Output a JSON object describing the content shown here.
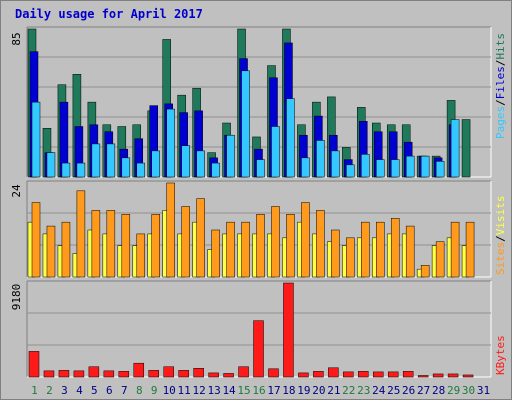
{
  "title": "Daily usage for April 2017",
  "colors": {
    "background": "#c0c0c0",
    "title": "#0000cc",
    "hits": "#1e7a5a",
    "files": "#0000d0",
    "pages": "#33c8ff",
    "visits": "#ff9a1c",
    "sites": "#ffff44",
    "kbytes": "#ff1a1a",
    "weekend_day": "#1e7a3c",
    "weekday": "#000080"
  },
  "chart_data": [
    {
      "type": "bar",
      "panel": "hits-files-pages",
      "ymax_label": "85",
      "legend": [
        "Pages",
        "Files",
        "Hits"
      ],
      "categories": [
        "1",
        "2",
        "3",
        "4",
        "5",
        "6",
        "7",
        "8",
        "9",
        "10",
        "11",
        "12",
        "13",
        "14",
        "15",
        "16",
        "17",
        "18",
        "19",
        "20",
        "21",
        "22",
        "23",
        "24",
        "25",
        "26",
        "27",
        "28",
        "29",
        "30",
        "31"
      ],
      "series": [
        {
          "name": "Hits",
          "values": [
            85,
            28,
            53,
            59,
            43,
            30,
            29,
            30,
            38,
            79,
            47,
            51,
            14,
            31,
            85,
            23,
            64,
            85,
            30,
            43,
            46,
            17,
            40,
            31,
            30,
            30,
            12,
            12,
            44,
            33,
            0
          ]
        },
        {
          "name": "Files",
          "values": [
            72,
            14,
            43,
            29,
            30,
            26,
            16,
            22,
            41,
            42,
            37,
            38,
            11,
            24,
            68,
            16,
            57,
            77,
            24,
            35,
            24,
            10,
            32,
            26,
            26,
            20,
            12,
            11,
            30,
            0,
            0
          ]
        },
        {
          "name": "Pages",
          "values": [
            43,
            14,
            8,
            8,
            19,
            19,
            11,
            8,
            15,
            39,
            18,
            15,
            8,
            24,
            61,
            10,
            29,
            45,
            11,
            21,
            15,
            7,
            13,
            10,
            10,
            12,
            12,
            9,
            33,
            0,
            0
          ]
        }
      ],
      "ylim": [
        0,
        85
      ]
    },
    {
      "type": "bar",
      "panel": "visits-sites",
      "ymax_label": "24",
      "legend": [
        "Sites",
        "Visits"
      ],
      "categories": [
        "1",
        "2",
        "3",
        "4",
        "5",
        "6",
        "7",
        "8",
        "9",
        "10",
        "11",
        "12",
        "13",
        "14",
        "15",
        "16",
        "17",
        "18",
        "19",
        "20",
        "21",
        "22",
        "23",
        "24",
        "25",
        "26",
        "27",
        "28",
        "29",
        "30",
        "31"
      ],
      "series": [
        {
          "name": "Visits",
          "values": [
            19,
            13,
            14,
            22,
            17,
            17,
            16,
            11,
            16,
            24,
            18,
            20,
            12,
            14,
            14,
            16,
            18,
            16,
            19,
            17,
            12,
            10,
            14,
            14,
            15,
            13,
            3,
            9,
            14,
            14,
            0
          ]
        },
        {
          "name": "Sites",
          "values": [
            14,
            11,
            8,
            6,
            12,
            11,
            8,
            8,
            11,
            17,
            11,
            14,
            7,
            11,
            11,
            11,
            11,
            10,
            14,
            11,
            9,
            8,
            10,
            10,
            11,
            11,
            2,
            8,
            10,
            8,
            0
          ]
        }
      ],
      "ylim": [
        0,
        24
      ]
    },
    {
      "type": "bar",
      "panel": "kbytes",
      "ymax_label": "9180",
      "legend": [
        "KBytes"
      ],
      "categories": [
        "1",
        "2",
        "3",
        "4",
        "5",
        "6",
        "7",
        "8",
        "9",
        "10",
        "11",
        "12",
        "13",
        "14",
        "15",
        "16",
        "17",
        "18",
        "19",
        "20",
        "21",
        "22",
        "23",
        "24",
        "25",
        "26",
        "27",
        "28",
        "29",
        "30",
        "31"
      ],
      "series": [
        {
          "name": "KBytes",
          "values": [
            2500,
            600,
            650,
            600,
            1000,
            600,
            550,
            1350,
            650,
            1000,
            650,
            850,
            400,
            350,
            1000,
            5500,
            800,
            9180,
            400,
            550,
            900,
            500,
            550,
            500,
            500,
            550,
            150,
            300,
            300,
            200,
            0
          ]
        }
      ],
      "ylim": [
        0,
        9180
      ]
    }
  ],
  "x_labels": [
    {
      "label": "1",
      "weekend": true
    },
    {
      "label": "2",
      "weekend": true
    },
    {
      "label": "3",
      "weekend": false
    },
    {
      "label": "4",
      "weekend": false
    },
    {
      "label": "5",
      "weekend": false
    },
    {
      "label": "6",
      "weekend": false
    },
    {
      "label": "7",
      "weekend": false
    },
    {
      "label": "8",
      "weekend": true
    },
    {
      "label": "9",
      "weekend": true
    },
    {
      "label": "10",
      "weekend": false
    },
    {
      "label": "11",
      "weekend": false
    },
    {
      "label": "12",
      "weekend": false
    },
    {
      "label": "13",
      "weekend": false
    },
    {
      "label": "14",
      "weekend": false
    },
    {
      "label": "15",
      "weekend": true
    },
    {
      "label": "16",
      "weekend": true
    },
    {
      "label": "17",
      "weekend": false
    },
    {
      "label": "18",
      "weekend": false
    },
    {
      "label": "19",
      "weekend": false
    },
    {
      "label": "20",
      "weekend": false
    },
    {
      "label": "21",
      "weekend": false
    },
    {
      "label": "22",
      "weekend": true
    },
    {
      "label": "23",
      "weekend": true
    },
    {
      "label": "24",
      "weekend": false
    },
    {
      "label": "25",
      "weekend": false
    },
    {
      "label": "26",
      "weekend": false
    },
    {
      "label": "27",
      "weekend": false
    },
    {
      "label": "28",
      "weekend": false
    },
    {
      "label": "29",
      "weekend": true
    },
    {
      "label": "30",
      "weekend": true
    },
    {
      "label": "31",
      "weekend": false
    }
  ]
}
